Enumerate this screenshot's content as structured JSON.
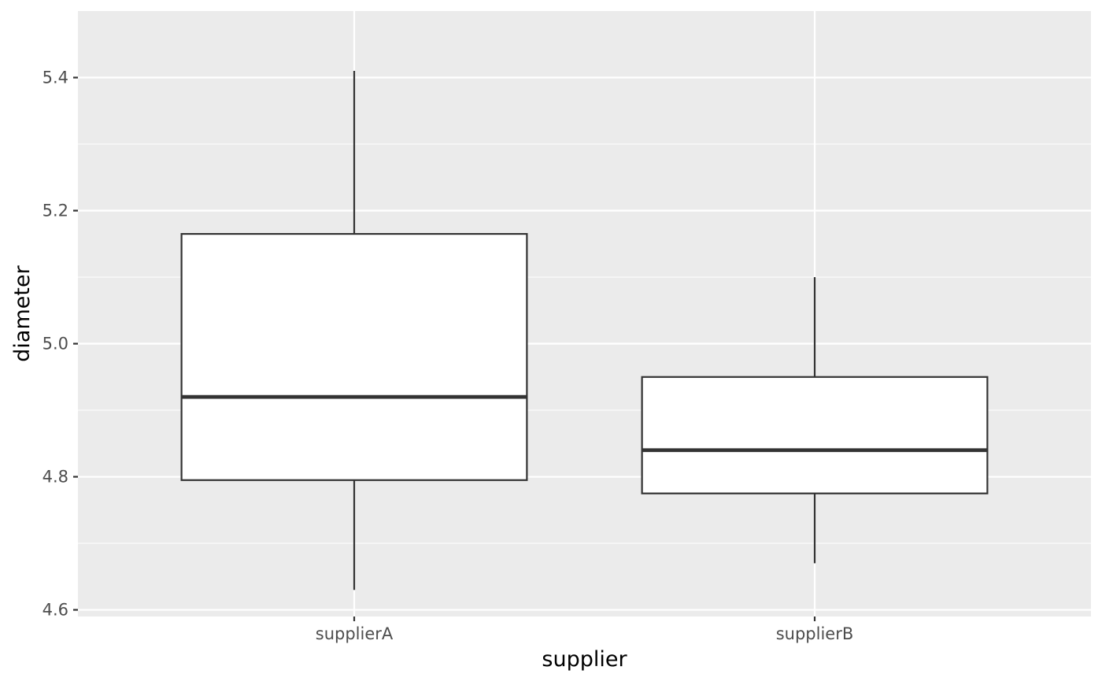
{
  "chart_data": {
    "type": "boxplot",
    "xlabel": "supplier",
    "ylabel": "diameter",
    "categories": [
      "supplierA",
      "supplierB"
    ],
    "boxes": [
      {
        "category": "supplierA",
        "whisker_low": 4.63,
        "q1": 4.795,
        "median": 4.92,
        "q3": 5.165,
        "whisker_high": 5.41
      },
      {
        "category": "supplierB",
        "whisker_low": 4.67,
        "q1": 4.775,
        "median": 4.84,
        "q3": 4.95,
        "whisker_high": 5.1
      }
    ],
    "ylim": [
      4.59,
      5.5
    ],
    "yticks": [
      4.6,
      4.8,
      5.0,
      5.2,
      5.4
    ],
    "ytick_labels": [
      "4.6",
      "4.8",
      "5.0",
      "5.2",
      "5.4"
    ],
    "y_minor_ticks": [
      4.7,
      4.9,
      5.1,
      5.3
    ],
    "grid": true,
    "colors": {
      "panel_background": "#EBEBEB",
      "grid_major": "#FFFFFF",
      "grid_minor": "#FFFFFF",
      "box_fill": "#FFFFFF",
      "box_stroke": "#333333",
      "tick_label": "#4D4D4D",
      "axis_title": "#000000"
    }
  }
}
